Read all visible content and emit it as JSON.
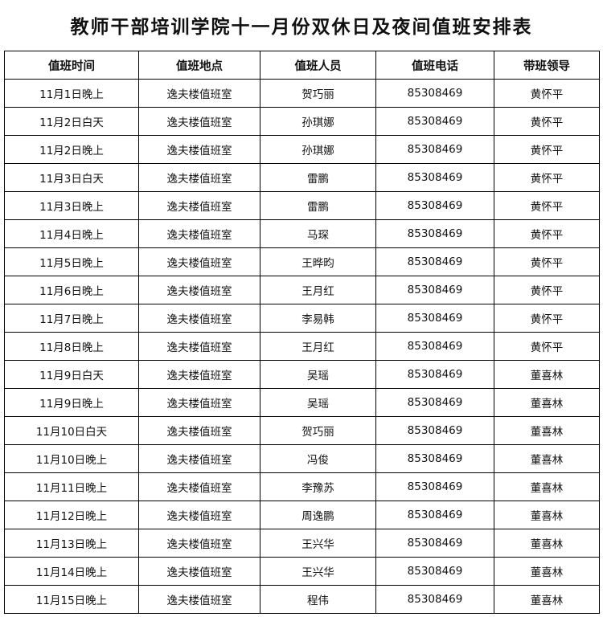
{
  "title": "教师干部培训学院十一月份双休日及夜间值班安排表",
  "headers": [
    "值班时间",
    "值班地点",
    "值班人员",
    "值班电话",
    "带班领导"
  ],
  "rows": [
    [
      "11月1日晚上",
      "逸夫楼值班室",
      "贺巧丽",
      "85308469",
      "黄怀平"
    ],
    [
      "11月2日白天",
      "逸夫楼值班室",
      "孙琪娜",
      "85308469",
      "黄怀平"
    ],
    [
      "11月2日晚上",
      "逸夫楼值班室",
      "孙琪娜",
      "85308469",
      "黄怀平"
    ],
    [
      "11月3日白天",
      "逸夫楼值班室",
      "雷鹏",
      "85308469",
      "黄怀平"
    ],
    [
      "11月3日晚上",
      "逸夫楼值班室",
      "雷鹏",
      "85308469",
      "黄怀平"
    ],
    [
      "11月4日晚上",
      "逸夫楼值班室",
      "马琛",
      "85308469",
      "黄怀平"
    ],
    [
      "11月5日晚上",
      "逸夫楼值班室",
      "王晔昀",
      "85308469",
      "黄怀平"
    ],
    [
      "11月6日晚上",
      "逸夫楼值班室",
      "王月红",
      "85308469",
      "黄怀平"
    ],
    [
      "11月7日晚上",
      "逸夫楼值班室",
      "李易韩",
      "85308469",
      "黄怀平"
    ],
    [
      "11月8日晚上",
      "逸夫楼值班室",
      "王月红",
      "85308469",
      "黄怀平"
    ],
    [
      "11月9日白天",
      "逸夫楼值班室",
      "吴瑶",
      "85308469",
      "董喜林"
    ],
    [
      "11月9日晚上",
      "逸夫楼值班室",
      "吴瑶",
      "85308469",
      "董喜林"
    ],
    [
      "11月10日白天",
      "逸夫楼值班室",
      "贺巧丽",
      "85308469",
      "董喜林"
    ],
    [
      "11月10日晚上",
      "逸夫楼值班室",
      "冯俊",
      "85308469",
      "董喜林"
    ],
    [
      "11月11日晚上",
      "逸夫楼值班室",
      "李豫苏",
      "85308469",
      "董喜林"
    ],
    [
      "11月12日晚上",
      "逸夫楼值班室",
      "周逸鹏",
      "85308469",
      "董喜林"
    ],
    [
      "11月13日晚上",
      "逸夫楼值班室",
      "王兴华",
      "85308469",
      "董喜林"
    ],
    [
      "11月14日晚上",
      "逸夫楼值班室",
      "王兴华",
      "85308469",
      "董喜林"
    ],
    [
      "11月15日晚上",
      "逸夫楼值班室",
      "程伟",
      "85308469",
      "董喜林"
    ]
  ]
}
